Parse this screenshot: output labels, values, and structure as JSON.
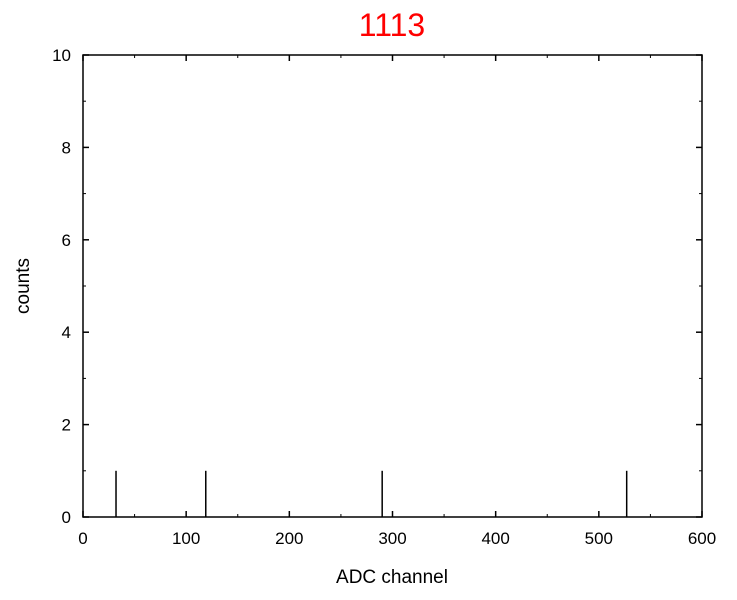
{
  "chart_data": {
    "type": "bar",
    "title": "1113",
    "title_color": "#ff0000",
    "xlabel": "ADC channel",
    "ylabel": "counts",
    "xlim": [
      0,
      600
    ],
    "ylim": [
      0,
      10
    ],
    "xticks": [
      0,
      100,
      200,
      300,
      400,
      500,
      600
    ],
    "yticks": [
      0,
      2,
      4,
      6,
      8,
      10
    ],
    "grid": false,
    "bar_color": "#000000",
    "points": [
      {
        "x": 32,
        "y": 1
      },
      {
        "x": 119,
        "y": 1
      },
      {
        "x": 290,
        "y": 1
      },
      {
        "x": 527,
        "y": 1
      }
    ]
  }
}
